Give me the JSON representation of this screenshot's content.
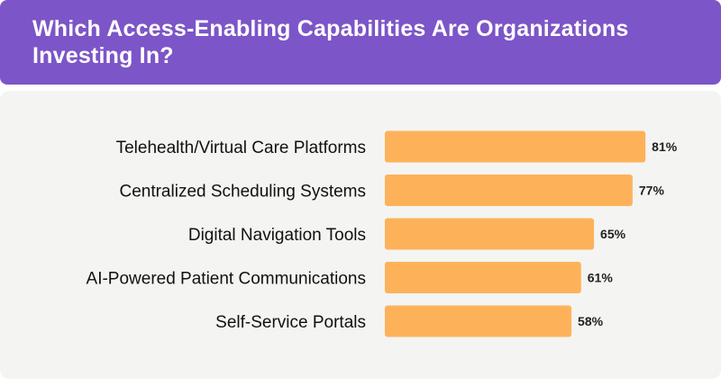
{
  "header": {
    "title": "Which Access-Enabling Capabilities Are Organizations Investing In?"
  },
  "colors": {
    "header_bg": "#7c55c8",
    "bar": "#fdb25a",
    "panel_bg": "#f4f4f2"
  },
  "chart_data": {
    "type": "bar",
    "orientation": "horizontal",
    "title": "Which Access-Enabling Capabilities Are Organizations Investing In?",
    "categories": [
      "Telehealth/Virtual Care Platforms",
      "Centralized Scheduling Systems",
      "Digital Navigation Tools",
      "AI-Powered Patient Communications",
      "Self-Service Portals"
    ],
    "values": [
      81,
      77,
      65,
      61,
      58
    ],
    "value_labels": [
      "81%",
      "77%",
      "65%",
      "61%",
      "58%"
    ],
    "unit": "%",
    "xlim": [
      0,
      100
    ],
    "grid": false,
    "legend": "none"
  }
}
